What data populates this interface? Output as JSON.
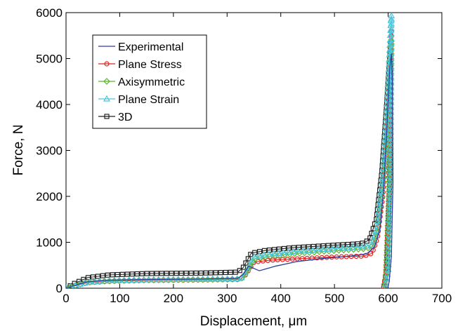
{
  "chart_data": {
    "type": "line",
    "xlabel": "Displacement, μm",
    "ylabel": "Force, N",
    "xlim": [
      0,
      700
    ],
    "ylim": [
      0,
      6000
    ],
    "xticks": [
      "0",
      "100",
      "200",
      "300",
      "400",
      "500",
      "600",
      "700"
    ],
    "yticks": [
      "0",
      "1000",
      "2000",
      "3000",
      "4000",
      "5000",
      "6000"
    ],
    "legend_position": "top-left",
    "grid": false,
    "series": [
      {
        "name": "Experimental",
        "color": "#2e3f9e",
        "marker": "none",
        "x": [
          0,
          15,
          40,
          80,
          150,
          250,
          320,
          330,
          340,
          360,
          390,
          430,
          480,
          530,
          560,
          575,
          585,
          592,
          598,
          603,
          606,
          608,
          609,
          606,
          602,
          599
        ],
        "y": [
          0,
          60,
          140,
          175,
          190,
          200,
          215,
          300,
          480,
          380,
          480,
          580,
          650,
          700,
          750,
          900,
          1300,
          2200,
          3600,
          4800,
          5100,
          4500,
          2300,
          700,
          150,
          0
        ]
      },
      {
        "name": "Plane Stress",
        "color": "#e32222",
        "marker": "circle",
        "x": [
          0,
          15,
          40,
          80,
          150,
          250,
          325,
          335,
          350,
          380,
          430,
          500,
          555,
          570,
          580,
          590,
          598,
          603,
          606,
          602,
          596,
          591
        ],
        "y": [
          0,
          50,
          120,
          150,
          170,
          180,
          190,
          300,
          570,
          610,
          640,
          680,
          700,
          760,
          1100,
          2000,
          3400,
          5000,
          5600,
          2200,
          300,
          0
        ]
      },
      {
        "name": "Axisymmetric",
        "color": "#5ab52a",
        "marker": "diamond",
        "x": [
          0,
          15,
          40,
          80,
          150,
          250,
          325,
          335,
          350,
          380,
          430,
          500,
          555,
          570,
          580,
          590,
          598,
          603,
          606,
          602,
          596,
          591
        ],
        "y": [
          0,
          55,
          130,
          160,
          180,
          190,
          200,
          320,
          640,
          700,
          760,
          820,
          860,
          900,
          1300,
          2300,
          3700,
          5000,
          5400,
          2100,
          250,
          0
        ]
      },
      {
        "name": "Plane Strain",
        "color": "#4cc6dc",
        "marker": "triangle",
        "x": [
          0,
          15,
          40,
          80,
          150,
          250,
          325,
          335,
          350,
          380,
          430,
          500,
          555,
          570,
          580,
          590,
          598,
          603,
          606,
          604,
          600,
          594
        ],
        "y": [
          0,
          55,
          130,
          165,
          185,
          195,
          205,
          340,
          680,
          740,
          800,
          860,
          900,
          950,
          1350,
          2400,
          3900,
          5200,
          5950,
          2600,
          400,
          0
        ]
      },
      {
        "name": "3D",
        "color": "#222222",
        "marker": "square",
        "x": [
          0,
          15,
          40,
          80,
          150,
          250,
          320,
          330,
          345,
          370,
          420,
          490,
          550,
          565,
          578,
          588,
          596,
          601,
          605,
          603,
          598,
          592
        ],
        "y": [
          0,
          100,
          230,
          290,
          320,
          330,
          350,
          450,
          760,
          820,
          880,
          930,
          970,
          1050,
          1500,
          2500,
          3800,
          4700,
          5400,
          2400,
          450,
          0
        ]
      }
    ]
  }
}
